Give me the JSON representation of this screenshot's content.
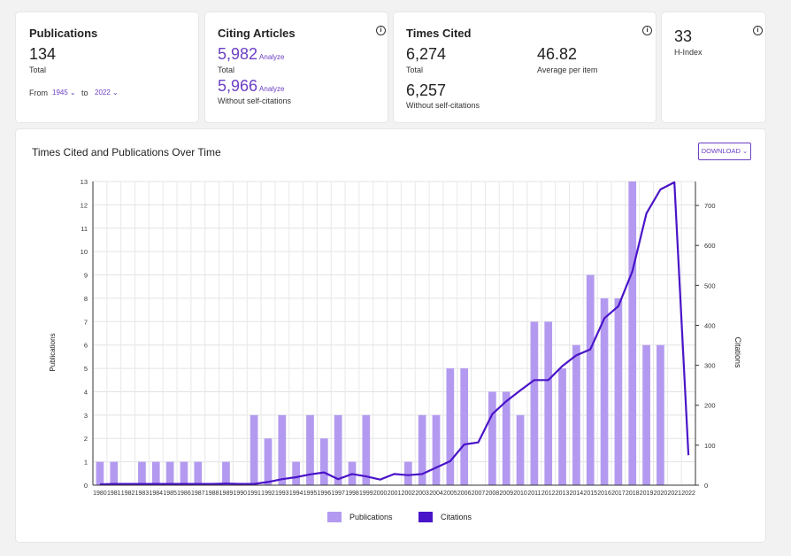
{
  "publications": {
    "title": "Publications",
    "value": "134",
    "value_label": "Total",
    "from_label": "From",
    "from_value": "1945",
    "to_label": "to",
    "to_value": "2022"
  },
  "citing": {
    "title": "Citing Articles",
    "total": "5,982",
    "total_analyze": "Analyze",
    "total_label": "Total",
    "noself": "5,966",
    "noself_analyze": "Analyze",
    "noself_label": "Without self-citations"
  },
  "cited": {
    "title": "Times Cited",
    "total": "6,274",
    "total_label": "Total",
    "avg": "46.82",
    "avg_label": "Average per item",
    "noself": "6,257",
    "noself_label": "Without self-citations"
  },
  "hindex": {
    "value": "33",
    "label": "H-Index"
  },
  "chart_section": {
    "title": "Times Cited and Publications Over Time",
    "download": "DOWNLOAD"
  },
  "colors": {
    "bar": "#b39af0",
    "line": "#4a14c9",
    "accent": "#6b3fc4"
  },
  "chart_data": {
    "type": "bar",
    "categories": [
      "1980",
      "1981",
      "1982",
      "1983",
      "1984",
      "1985",
      "1986",
      "1987",
      "1988",
      "1989",
      "1990",
      "1991",
      "1992",
      "1993",
      "1994",
      "1995",
      "1996",
      "1997",
      "1998",
      "1999",
      "2000",
      "2001",
      "2002",
      "2003",
      "2004",
      "2005",
      "2006",
      "2007",
      "2008",
      "2009",
      "2010",
      "2011",
      "2012",
      "2013",
      "2014",
      "2015",
      "2016",
      "2017",
      "2018",
      "2019",
      "2020",
      "2021",
      "2022"
    ],
    "series": [
      {
        "name": "Publications",
        "type": "bar",
        "axis": "left",
        "values": [
          1,
          1,
          0,
          1,
          1,
          1,
          1,
          1,
          0,
          1,
          0,
          3,
          2,
          3,
          1,
          3,
          2,
          3,
          1,
          3,
          0,
          0,
          1,
          3,
          3,
          5,
          5,
          0,
          4,
          4,
          3,
          7,
          7,
          5,
          6,
          9,
          8,
          8,
          13,
          6,
          6,
          0,
          0
        ]
      },
      {
        "name": "Citations",
        "type": "line",
        "axis": "right",
        "values": [
          2,
          3,
          3,
          3,
          3,
          3,
          3,
          3,
          3,
          4,
          3,
          3,
          8,
          15,
          20,
          27,
          32,
          15,
          28,
          22,
          14,
          28,
          25,
          28,
          44,
          60,
          102,
          107,
          178,
          210,
          237,
          263,
          263,
          298,
          325,
          340,
          418,
          448,
          535,
          680,
          740,
          758,
          75
        ]
      }
    ],
    "ylabel": "Publications",
    "y2label": "Citations",
    "ylim": [
      0,
      13
    ],
    "y2lim": [
      0,
      760
    ],
    "yticks": [
      "0",
      "1",
      "2",
      "3",
      "4",
      "5",
      "6",
      "7",
      "8",
      "9",
      "10",
      "11",
      "12",
      "13"
    ],
    "y2ticks": [
      "0",
      "100",
      "200",
      "300",
      "400",
      "500",
      "600",
      "700"
    ],
    "grid": true,
    "legend": "bottom-center"
  }
}
